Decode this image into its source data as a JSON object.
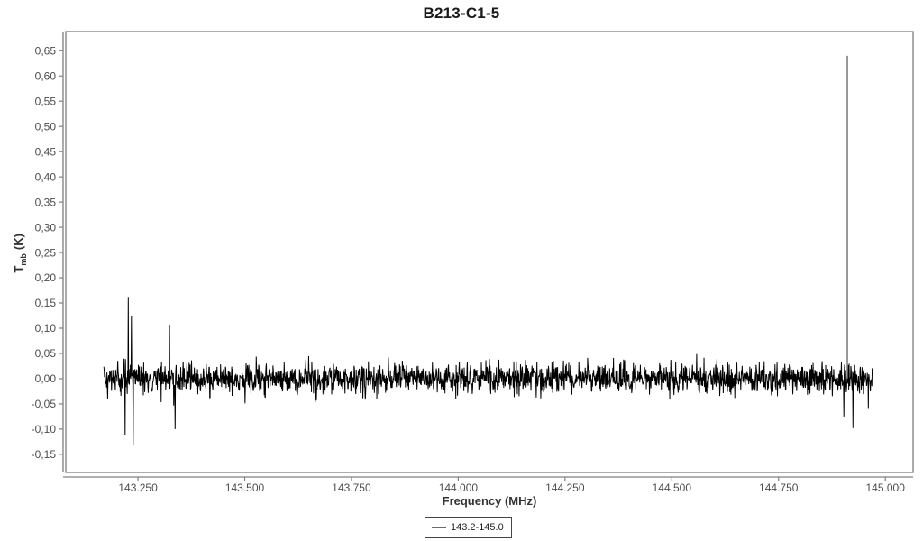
{
  "title": "B213-C1-5",
  "chart_data": {
    "type": "line",
    "title": "B213-C1-5",
    "xlabel": "Frequency (MHz)",
    "ylabel": {
      "symbol": "T",
      "subscript": "mb",
      "unit": "(K)"
    },
    "grid": false,
    "xlim": [
      143.081,
      145.065
    ],
    "ylim": [
      -0.186,
      0.688
    ],
    "x_ticks": {
      "values": [
        143.25,
        143.5,
        143.75,
        144.0,
        144.25,
        144.5,
        144.75,
        145.0
      ],
      "labels": [
        "143.250",
        "143.500",
        "143.750",
        "144.000",
        "144.250",
        "144.500",
        "144.750",
        "145.000"
      ]
    },
    "y_ticks": {
      "values": [
        -0.15,
        -0.1,
        -0.05,
        0.0,
        0.05,
        0.1,
        0.15,
        0.2,
        0.25,
        0.3,
        0.35,
        0.4,
        0.45,
        0.5,
        0.55,
        0.6,
        0.65
      ],
      "labels": [
        "-0,15",
        "-0,10",
        "-0,05",
        "0,00",
        "0,05",
        "0,10",
        "0,15",
        "0,20",
        "0,25",
        "0,30",
        "0,35",
        "0,40",
        "0,45",
        "0,50",
        "0,55",
        "0,60",
        "0,65"
      ]
    },
    "legend": {
      "position": "bottom-center",
      "entries": [
        {
          "label": "143.2-145.0",
          "line_color": "#6b6b6b"
        }
      ]
    },
    "series": [
      {
        "name": "143.2-145.0",
        "description": "noisy spectral baseline centered on 0 K with narrow emission/absorption spikes",
        "x_start": 143.17,
        "x_end": 144.97,
        "baseline": 0.0,
        "noise_sigma": 0.015,
        "n_points": 2200,
        "spikes": [
          {
            "x": 143.22,
            "y": -0.111
          },
          {
            "x": 143.227,
            "y": 0.162
          },
          {
            "x": 143.235,
            "y": 0.125
          },
          {
            "x": 143.239,
            "y": -0.132
          },
          {
            "x": 143.324,
            "y": 0.107
          },
          {
            "x": 143.337,
            "y": -0.1
          },
          {
            "x": 144.903,
            "y": -0.075
          },
          {
            "x": 144.911,
            "y": 0.64
          },
          {
            "x": 144.924,
            "y": -0.098
          },
          {
            "x": 144.96,
            "y": -0.06
          }
        ]
      }
    ],
    "colors": {
      "line": "#000000",
      "tall_spike": "#6e6e6e",
      "frame": "#808080",
      "tick_label": "#4d4d4d",
      "title": "#1a1a1a",
      "axis_label": "#333333"
    }
  }
}
